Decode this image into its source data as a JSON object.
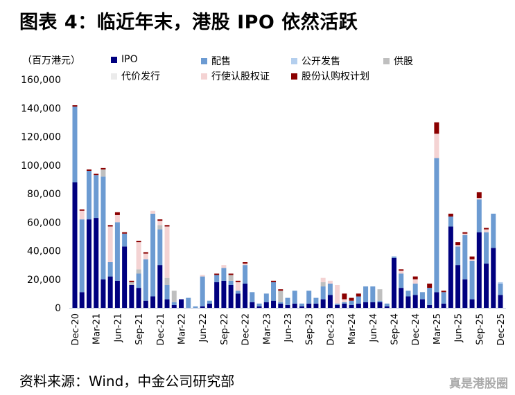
{
  "title": "图表 4：临近年末，港股 IPO 依然活跃",
  "source": "资料来源：Wind，中金公司研究部",
  "corner_watermark": "真是港股圈",
  "chart_data": {
    "type": "bar",
    "stacked": true,
    "unit_label": "（百万港元）",
    "ylim": [
      0,
      160000
    ],
    "yticks": [
      0,
      20000,
      40000,
      60000,
      80000,
      100000,
      120000,
      140000,
      160000
    ],
    "ytick_labels": [
      "0",
      "20,000",
      "40,000",
      "60,000",
      "80,000",
      "100,000",
      "120,000",
      "140,000",
      "160,000"
    ],
    "legend_position": "top",
    "categories": [
      "Dec-20",
      "Jan-21",
      "Feb-21",
      "Mar-21",
      "Apr-21",
      "May-21",
      "Jun-21",
      "Jul-21",
      "Aug-21",
      "Sep-21",
      "Oct-21",
      "Nov-21",
      "Dec-21",
      "Jan-22",
      "Feb-22",
      "Mar-22",
      "Apr-22",
      "May-22",
      "Jun-22",
      "Jul-22",
      "Aug-22",
      "Sep-22",
      "Oct-22",
      "Nov-22",
      "Dec-22",
      "Jan-23",
      "Feb-23",
      "Mar-23",
      "Apr-23",
      "May-23",
      "Jun-23",
      "Jul-23",
      "Aug-23",
      "Sep-23",
      "Oct-23",
      "Nov-23",
      "Dec-23",
      "Jan-24",
      "Feb-24",
      "Mar-24",
      "Apr-24",
      "May-24",
      "Jun-24",
      "Jul-24",
      "Aug-24",
      "Sep-24",
      "Oct-24",
      "Nov-24",
      "Dec-24",
      "Jan-25",
      "Feb-25",
      "Mar-25",
      "Apr-25",
      "May-25",
      "Jun-25",
      "Jul-25",
      "Aug-25",
      "Sep-25",
      "Oct-25",
      "Nov-25",
      "Dec-25"
    ],
    "xtick_labels": [
      "Dec-20",
      "Mar-21",
      "Jun-21",
      "Sep-21",
      "Dec-21",
      "Mar-22",
      "Jun-22",
      "Sep-22",
      "Dec-22",
      "Mar-23",
      "Jun-23",
      "Sep-23",
      "Dec-23",
      "Mar-24",
      "Jun-24",
      "Sep-24",
      "Dec-24",
      "Mar-25",
      "Jun-25",
      "Sep-25",
      "Dec-25"
    ],
    "series": [
      {
        "name": "IPO",
        "color": "#00007F",
        "values": [
          88000,
          11000,
          62000,
          63000,
          20000,
          22000,
          19000,
          43000,
          16000,
          14000,
          5000,
          8000,
          30000,
          6000,
          2000,
          6000,
          0,
          0,
          1000,
          3000,
          18000,
          19000,
          16000,
          10000,
          17000,
          4000,
          1000,
          4000,
          5000,
          3000,
          2000,
          3000,
          1000,
          3000,
          3000,
          6000,
          9000,
          2000,
          3000,
          2000,
          3000,
          4000,
          4000,
          4000,
          1000,
          35000,
          14000,
          8000,
          9000,
          6000,
          2000,
          11000,
          3000,
          57000,
          30000,
          20000,
          6000,
          53000,
          31000,
          42000,
          9000
        ]
      },
      {
        "name": "配售",
        "color": "#6C9BD2",
        "values": [
          53000,
          51000,
          34000,
          30000,
          72000,
          10000,
          41000,
          9000,
          0,
          10000,
          29000,
          58000,
          25000,
          10000,
          2000,
          0,
          7000,
          1000,
          21000,
          2000,
          5000,
          9000,
          3000,
          2000,
          13000,
          7000,
          2000,
          6000,
          13000,
          1000,
          5000,
          9000,
          2000,
          9000,
          4000,
          9000,
          8000,
          1000,
          1000,
          3000,
          5000,
          11000,
          11000,
          1000,
          2000,
          1000,
          10000,
          4000,
          8000,
          5000,
          12000,
          94000,
          8000,
          7000,
          13000,
          31000,
          27000,
          23000,
          22000,
          24000,
          8000
        ]
      },
      {
        "name": "公开发售",
        "color": "#B4CFEE",
        "values": [
          0,
          0,
          0,
          0,
          0,
          0,
          0,
          0,
          0,
          0,
          0,
          0,
          0,
          0,
          0,
          0,
          0,
          0,
          0,
          0,
          0,
          0,
          0,
          0,
          0,
          0,
          0,
          0,
          0,
          0,
          0,
          0,
          0,
          0,
          0,
          0,
          0,
          0,
          0,
          0,
          0,
          0,
          0,
          0,
          0,
          0,
          0,
          0,
          0,
          0,
          0,
          0,
          0,
          0,
          0,
          0,
          0,
          0,
          0,
          0,
          1000
        ]
      },
      {
        "name": "供股",
        "color": "#BFBFBF",
        "values": [
          0,
          0,
          0,
          0,
          5000,
          0,
          0,
          0,
          2000,
          3000,
          0,
          0,
          3000,
          5000,
          8000,
          0,
          0,
          0,
          0,
          0,
          0,
          0,
          4000,
          0,
          0,
          0,
          0,
          0,
          0,
          8000,
          0,
          0,
          0,
          0,
          0,
          3000,
          0,
          0,
          0,
          0,
          0,
          0,
          0,
          8000,
          0,
          0,
          0,
          0,
          0,
          0,
          0,
          0,
          0,
          0,
          0,
          0,
          0,
          0,
          0,
          0,
          0
        ]
      },
      {
        "name": "代价发行",
        "color": "#EBEBEB",
        "values": [
          0,
          0,
          0,
          0,
          0,
          0,
          0,
          0,
          0,
          0,
          0,
          0,
          0,
          0,
          0,
          0,
          0,
          0,
          0,
          0,
          0,
          0,
          0,
          0,
          0,
          0,
          0,
          0,
          0,
          0,
          0,
          0,
          0,
          0,
          0,
          0,
          0,
          0,
          0,
          0,
          0,
          0,
          0,
          0,
          0,
          0,
          0,
          0,
          0,
          0,
          0,
          0,
          0,
          0,
          0,
          0,
          0,
          0,
          0,
          0,
          0
        ]
      },
      {
        "name": "行使认股权证",
        "color": "#F4D3D3",
        "values": [
          0,
          6000,
          0,
          0,
          0,
          25000,
          5000,
          0,
          0,
          19000,
          4000,
          2000,
          3000,
          36000,
          0,
          0,
          0,
          0,
          1000,
          0,
          0,
          2000,
          0,
          6000,
          1000,
          0,
          0,
          0,
          0,
          0,
          0,
          0,
          0,
          0,
          0,
          3000,
          2000,
          13000,
          2000,
          0,
          0,
          0,
          0,
          0,
          0,
          0,
          2000,
          0,
          3000,
          0,
          0,
          17000,
          0,
          0,
          1000,
          1000,
          1000,
          1000,
          2000,
          0,
          0
        ]
      },
      {
        "name": "股份认购权计划",
        "color": "#8B0000",
        "values": [
          1000,
          1000,
          1000,
          1000,
          1000,
          1000,
          2000,
          1000,
          1000,
          1000,
          1000,
          0,
          1000,
          1000,
          0,
          0,
          0,
          0,
          0,
          0,
          1000,
          0,
          1000,
          1000,
          1000,
          0,
          0,
          0,
          1000,
          1000,
          0,
          0,
          0,
          0,
          0,
          0,
          0,
          0,
          4000,
          2000,
          2000,
          0,
          0,
          0,
          0,
          0,
          1000,
          0,
          2000,
          0,
          3000,
          8000,
          1000,
          2000,
          2000,
          1000,
          2000,
          4000,
          1000,
          0,
          0
        ]
      }
    ]
  }
}
